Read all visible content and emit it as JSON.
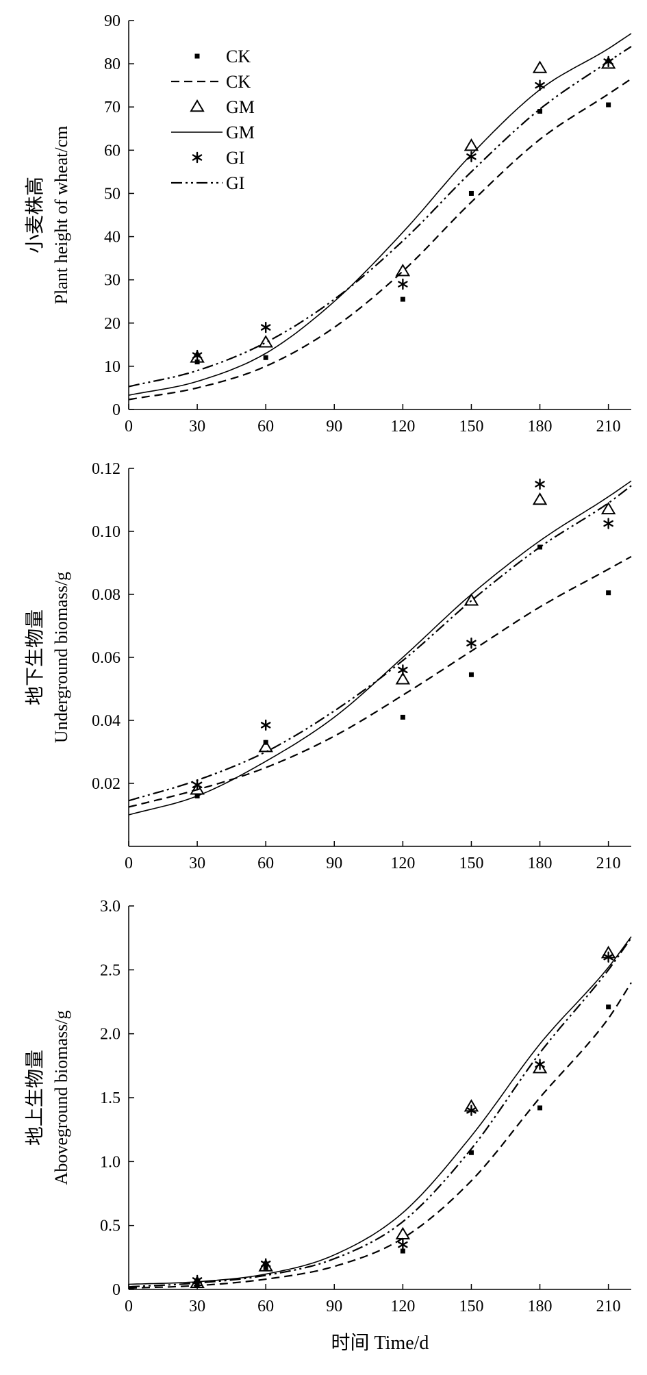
{
  "figure": {
    "xlabel": "时间 Time/d"
  },
  "legend": {
    "entries": [
      {
        "label": "CK",
        "marker": "square",
        "kind": "observed"
      },
      {
        "label": "CK",
        "line": "dashed",
        "kind": "fitted"
      },
      {
        "label": "GM",
        "marker": "triangle",
        "kind": "observed"
      },
      {
        "label": "GM",
        "line": "solid",
        "kind": "fitted"
      },
      {
        "label": "GI",
        "marker": "asterisk",
        "kind": "observed"
      },
      {
        "label": "GI",
        "line": "dash-dot-dot",
        "kind": "fitted"
      }
    ]
  },
  "chart_data": [
    {
      "type": "scatter",
      "ylabel_cn": "小麦株高",
      "ylabel_en": "Plant height of wheat/cm",
      "xlim": [
        0,
        220
      ],
      "ylim": [
        0,
        90
      ],
      "x_ticks": [
        0,
        30,
        60,
        90,
        120,
        150,
        180,
        210
      ],
      "y_ticks": [
        0,
        10,
        20,
        30,
        40,
        50,
        60,
        70,
        80,
        90
      ],
      "y_tick_labels": [
        "0",
        "10",
        "20",
        "30",
        "40",
        "50",
        "60",
        "70",
        "80",
        "90"
      ],
      "legend_position": "top-left",
      "observed": [
        {
          "name": "CK",
          "marker": "square",
          "x": [
            30,
            60,
            120,
            150,
            180,
            210
          ],
          "y": [
            11,
            12,
            25.5,
            50,
            69,
            70.5
          ]
        },
        {
          "name": "GM",
          "marker": "triangle",
          "x": [
            30,
            60,
            120,
            150,
            180,
            210
          ],
          "y": [
            12,
            15.5,
            32,
            61,
            79,
            80
          ]
        },
        {
          "name": "GI",
          "marker": "asterisk",
          "x": [
            30,
            60,
            120,
            150,
            180,
            210
          ],
          "y": [
            12.5,
            19,
            29,
            58.5,
            75,
            80.5
          ]
        }
      ],
      "fitted": [
        {
          "name": "CK",
          "line": "dashed",
          "x": [
            0,
            30,
            60,
            90,
            120,
            150,
            180,
            210,
            220
          ],
          "y": [
            2.3,
            5,
            10,
            19,
            32,
            48,
            62.5,
            73,
            76.5
          ]
        },
        {
          "name": "GM",
          "line": "solid",
          "x": [
            0,
            30,
            60,
            90,
            120,
            150,
            180,
            210,
            220
          ],
          "y": [
            3.3,
            6.5,
            13,
            25,
            41,
            59,
            74,
            83.5,
            87
          ]
        },
        {
          "name": "GI",
          "line": "dash-dot-dot",
          "x": [
            0,
            30,
            60,
            90,
            120,
            150,
            180,
            210,
            220
          ],
          "y": [
            5.3,
            9,
            15.5,
            25.5,
            39,
            55,
            69.5,
            80.5,
            84
          ]
        }
      ]
    },
    {
      "type": "scatter",
      "ylabel_cn": "地下生物量",
      "ylabel_en": "Underground biomass/g",
      "xlim": [
        0,
        220
      ],
      "ylim": [
        0,
        0.12
      ],
      "x_ticks": [
        0,
        30,
        60,
        90,
        120,
        150,
        180,
        210
      ],
      "y_ticks": [
        0.02,
        0.04,
        0.06,
        0.08,
        0.1,
        0.12
      ],
      "y_tick_labels": [
        "0.02",
        "0.04",
        "0.06",
        "0.08",
        "0.10",
        "0.12"
      ],
      "observed": [
        {
          "name": "CK",
          "marker": "square",
          "x": [
            30,
            60,
            120,
            150,
            180,
            210
          ],
          "y": [
            0.016,
            0.033,
            0.041,
            0.0545,
            0.095,
            0.0805
          ]
        },
        {
          "name": "GM",
          "marker": "triangle",
          "x": [
            30,
            60,
            120,
            150,
            180,
            210
          ],
          "y": [
            0.018,
            0.0315,
            0.053,
            0.078,
            0.11,
            0.107
          ]
        },
        {
          "name": "GI",
          "marker": "asterisk",
          "x": [
            30,
            60,
            120,
            150,
            180,
            210
          ],
          "y": [
            0.0195,
            0.0385,
            0.056,
            0.0645,
            0.115,
            0.1025
          ]
        }
      ],
      "fitted": [
        {
          "name": "CK",
          "line": "dashed",
          "x": [
            0,
            30,
            60,
            90,
            120,
            150,
            180,
            210,
            220
          ],
          "y": [
            0.0125,
            0.018,
            0.025,
            0.035,
            0.048,
            0.062,
            0.076,
            0.088,
            0.092
          ]
        },
        {
          "name": "GM",
          "line": "solid",
          "x": [
            0,
            30,
            60,
            90,
            120,
            150,
            180,
            210,
            220
          ],
          "y": [
            0.01,
            0.016,
            0.027,
            0.041,
            0.06,
            0.08,
            0.097,
            0.111,
            0.116
          ]
        },
        {
          "name": "GI",
          "line": "dash-dot-dot",
          "x": [
            0,
            30,
            60,
            90,
            120,
            150,
            180,
            210,
            220
          ],
          "y": [
            0.0145,
            0.021,
            0.03,
            0.043,
            0.059,
            0.078,
            0.095,
            0.109,
            0.1145
          ]
        }
      ]
    },
    {
      "type": "scatter",
      "ylabel_cn": "地上生物量",
      "ylabel_en": "Aboveground biomass/g",
      "xlim": [
        0,
        220
      ],
      "ylim": [
        0,
        3.0
      ],
      "x_ticks": [
        0,
        30,
        60,
        90,
        120,
        150,
        180,
        210
      ],
      "y_ticks": [
        0,
        0.5,
        1.0,
        1.5,
        2.0,
        2.5,
        3.0
      ],
      "y_tick_labels": [
        "0",
        "0.5",
        "1.0",
        "1.5",
        "2.0",
        "2.5",
        "3.0"
      ],
      "observed": [
        {
          "name": "CK",
          "marker": "square",
          "x": [
            30,
            60,
            120,
            150,
            180,
            210
          ],
          "y": [
            0.04,
            0.17,
            0.3,
            1.07,
            1.42,
            2.21
          ]
        },
        {
          "name": "GM",
          "marker": "triangle",
          "x": [
            30,
            60,
            120,
            150,
            180,
            210
          ],
          "y": [
            0.05,
            0.18,
            0.43,
            1.43,
            1.73,
            2.63
          ]
        },
        {
          "name": "GI",
          "marker": "asterisk",
          "x": [
            30,
            60,
            120,
            150,
            180,
            210
          ],
          "y": [
            0.07,
            0.2,
            0.35,
            1.4,
            1.76,
            2.6
          ]
        }
      ],
      "fitted": [
        {
          "name": "CK",
          "line": "dashed",
          "x": [
            0,
            30,
            60,
            90,
            120,
            150,
            180,
            210,
            220
          ],
          "y": [
            0.01,
            0.03,
            0.08,
            0.18,
            0.4,
            0.85,
            1.5,
            2.12,
            2.4
          ]
        },
        {
          "name": "GM",
          "line": "solid",
          "x": [
            0,
            30,
            60,
            90,
            120,
            150,
            180,
            210,
            220
          ],
          "y": [
            0.04,
            0.06,
            0.12,
            0.27,
            0.6,
            1.2,
            1.92,
            2.52,
            2.76
          ]
        },
        {
          "name": "GI",
          "line": "dash-dot-dot",
          "x": [
            0,
            30,
            60,
            90,
            120,
            150,
            180,
            210,
            220
          ],
          "y": [
            0.02,
            0.05,
            0.11,
            0.24,
            0.53,
            1.1,
            1.85,
            2.5,
            2.75
          ]
        }
      ]
    }
  ]
}
